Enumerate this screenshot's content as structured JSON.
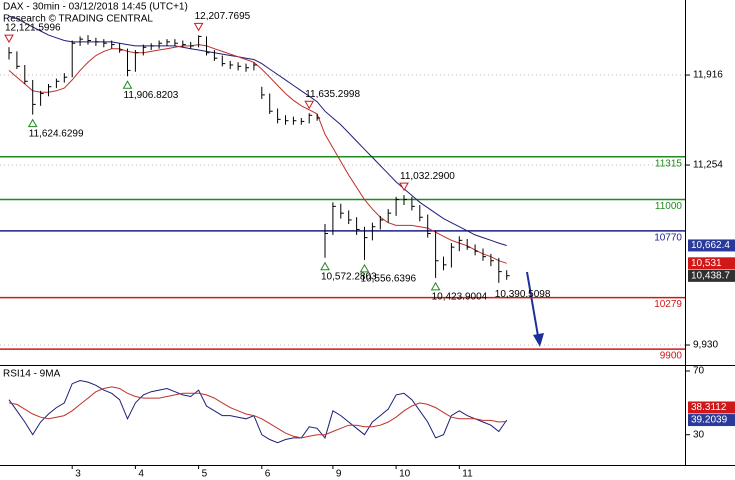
{
  "chart_data": {
    "type": "ohlc",
    "title": "DAX - 30min - 03/12/2018 14:45 (UTC+1)",
    "subtitle": "Research © TRADING CENTRAL",
    "categories": [
      null,
      null,
      null,
      null,
      null,
      null,
      null,
      null,
      "3",
      null,
      null,
      null,
      null,
      null,
      null,
      null,
      "4",
      null,
      null,
      null,
      null,
      null,
      null,
      null,
      "5",
      null,
      null,
      null,
      null,
      null,
      null,
      null,
      "6",
      null,
      null,
      null,
      null,
      null,
      null,
      null,
      null,
      "9",
      null,
      null,
      null,
      null,
      null,
      null,
      null,
      "10",
      null,
      null,
      null,
      null,
      null,
      null,
      null,
      "11",
      null,
      null,
      null,
      null,
      null,
      null
    ],
    "high": [
      12121.5996,
      12090,
      11990,
      11880,
      11800,
      11850,
      11890,
      11930,
      12170,
      12200,
      12210,
      12190,
      12180,
      12170,
      12150,
      12110,
      12100,
      12140,
      12150,
      12170,
      12180,
      12180,
      12170,
      12160,
      12207.7695,
      12200,
      12100,
      12060,
      12020,
      12010,
      12000,
      12010,
      11830,
      11780,
      11670,
      11620,
      11610,
      11600,
      11635.2998,
      11630,
      10820,
      10980,
      10970,
      10920,
      10870,
      10800,
      10830,
      10880,
      10930,
      11020,
      11032.29,
      11020,
      10960,
      10890,
      10770,
      10580,
      10680,
      10730,
      10710,
      10670,
      10640,
      10600,
      10570,
      10480
    ],
    "low": [
      12030,
      11960,
      11850,
      11624.6299,
      11690,
      11760,
      11820,
      11860,
      11900,
      12130,
      12140,
      12130,
      12120,
      12110,
      12080,
      11906.8203,
      11940,
      12060,
      12100,
      12110,
      12130,
      12130,
      12120,
      12110,
      12120,
      12060,
      12020,
      11980,
      11960,
      11950,
      11940,
      11950,
      11740,
      11630,
      11560,
      11550,
      11550,
      11550,
      11560,
      11580,
      10572.2803,
      10740,
      10860,
      10820,
      10740,
      10556.6396,
      10700,
      10780,
      10830,
      10880,
      10960,
      10920,
      10840,
      10720,
      10423.9004,
      10480,
      10500,
      10620,
      10630,
      10590,
      10550,
      10510,
      10390.5098,
      10410
    ],
    "close": [
      12080,
      11980,
      11870,
      11700,
      11780,
      11830,
      11870,
      11900,
      12150,
      12180,
      12170,
      12160,
      12150,
      12140,
      12100,
      11950,
      12080,
      12120,
      12130,
      12150,
      12160,
      12150,
      12140,
      12130,
      12200,
      12080,
      12040,
      12000,
      11990,
      11980,
      11970,
      11990,
      11770,
      11650,
      11590,
      11580,
      11580,
      11575,
      11620,
      11600,
      10750,
      10950,
      10900,
      10850,
      10780,
      10720,
      10800,
      10850,
      10900,
      11000,
      11000,
      10950,
      10870,
      10750,
      10550,
      10520,
      10650,
      10700,
      10650,
      10620,
      10580,
      10550,
      10470,
      10440
    ],
    "bar_color": "#000000",
    "ylim": [
      9783,
      12468
    ],
    "yticks": [
      {
        "value": 11916,
        "label": "11,916"
      },
      {
        "value": 11254,
        "label": "11,254"
      },
      {
        "value": 9930,
        "label": "9,930"
      }
    ],
    "grid": true,
    "lines": [
      {
        "color": "#1c1f7a",
        "values": [
          12350,
          12330,
          12300,
          12270,
          12240,
          12210,
          12190,
          12170,
          12160,
          12160,
          12160,
          12160,
          12160,
          12160,
          12150,
          12140,
          12130,
          12130,
          12130,
          12130,
          12130,
          12130,
          12120,
          12110,
          12100,
          12090,
          12080,
          12070,
          12060,
          12050,
          12040,
          12030,
          12000,
          11960,
          11920,
          11880,
          11840,
          11800,
          11760,
          11720,
          11650,
          11600,
          11550,
          11490,
          11430,
          11370,
          11310,
          11250,
          11190,
          11130,
          11080,
          11030,
          10980,
          10940,
          10900,
          10860,
          10830,
          10800,
          10770,
          10740,
          10720,
          10700,
          10680,
          10662
        ]
      },
      {
        "color": "#c0302a",
        "values": [
          11950,
          11900,
          11850,
          11800,
          11790,
          11790,
          11800,
          11820,
          11880,
          11950,
          12010,
          12060,
          12090,
          12110,
          12110,
          12090,
          12080,
          12080,
          12090,
          12100,
          12110,
          12120,
          12130,
          12130,
          12140,
          12130,
          12110,
          12090,
          12070,
          12050,
          12030,
          12010,
          11960,
          11900,
          11840,
          11780,
          11730,
          11690,
          11660,
          11630,
          11480,
          11380,
          11280,
          11180,
          11090,
          11000,
          10930,
          10870,
          10830,
          10810,
          10810,
          10810,
          10800,
          10790,
          10760,
          10730,
          10700,
          10680,
          10660,
          10630,
          10600,
          10580,
          10550,
          10531
        ]
      }
    ],
    "levels": [
      {
        "value": 11315,
        "color": "#1f8a1f"
      },
      {
        "value": 11000,
        "color": "#1f8a1f"
      },
      {
        "value": 10770,
        "color": "#1c1f8a"
      },
      {
        "value": 10279,
        "color": "#d01818"
      },
      {
        "value": 9900,
        "color": "#d01818"
      }
    ],
    "annotations": [
      {
        "x": 0,
        "value": 12121.5996,
        "label": "12,121.5996",
        "kind": "high"
      },
      {
        "x": 3,
        "value": 11624.6299,
        "label": "11,624.6299",
        "kind": "low"
      },
      {
        "x": 15,
        "value": 11906.8203,
        "label": "11,906.8203",
        "kind": "low"
      },
      {
        "x": 24,
        "value": 12207.7695,
        "label": "12,207.7695",
        "kind": "high"
      },
      {
        "x": 38,
        "value": 11635.2998,
        "label": "11,635.2998",
        "kind": "high"
      },
      {
        "x": 50,
        "value": 11032.29,
        "label": "11,032.2900",
        "kind": "high"
      },
      {
        "x": 40,
        "value": 10572.2803,
        "label": "10,572.2803",
        "kind": "low"
      },
      {
        "x": 45,
        "value": 10556.6396,
        "label": "10,556.6396",
        "kind": "low"
      },
      {
        "x": 54,
        "value": 10423.9004,
        "label": "10,423.9004",
        "kind": "low"
      },
      {
        "x": 62,
        "value": 10390.5098,
        "label": "10,390.5098",
        "kind": "note"
      }
    ],
    "badges": [
      {
        "value": 10662.4,
        "label": "10,662.4",
        "color": "#2a3a9a"
      },
      {
        "value": 10531,
        "label": "10,531",
        "color": "#d01818"
      },
      {
        "value": 10438.7,
        "label": "10,438.7",
        "color": "#303030"
      }
    ],
    "rsi": {
      "title": "RSI14 - 9MA",
      "ylim": [
        11,
        72.5
      ],
      "yticks": [
        70,
        30
      ],
      "series": [
        {
          "color": "#1c1f7a",
          "values": [
            52,
            45,
            38,
            30,
            38,
            43,
            47,
            50,
            62,
            64,
            63,
            61,
            58,
            56,
            52,
            40,
            50,
            55,
            57,
            58,
            59,
            57,
            55,
            54,
            58,
            48,
            45,
            42,
            42,
            41,
            40,
            42,
            30,
            27,
            25,
            27,
            28,
            28,
            35,
            34,
            28,
            45,
            42,
            38,
            34,
            30,
            38,
            42,
            46,
            55,
            56,
            52,
            45,
            38,
            28,
            30,
            42,
            45,
            42,
            40,
            38,
            36,
            32,
            39.2039
          ]
        },
        {
          "color": "#c0302a",
          "values": [
            50,
            49,
            46,
            43,
            41,
            40,
            41,
            42,
            45,
            49,
            53,
            57,
            59,
            60,
            59,
            56,
            54,
            53,
            53,
            53,
            54,
            55,
            56,
            56,
            56,
            55,
            53,
            50,
            47,
            45,
            43,
            42,
            40,
            37,
            34,
            31,
            29,
            28,
            29,
            30,
            30,
            32,
            34,
            36,
            36,
            35,
            35,
            36,
            38,
            41,
            45,
            48,
            50,
            49,
            47,
            44,
            41,
            40,
            40,
            40,
            39,
            39,
            38,
            38.3112
          ]
        }
      ],
      "badges": [
        {
          "value": 38.3112,
          "label": "38.3112",
          "color": "#d01818"
        },
        {
          "value": 39.2039,
          "label": "39.2039",
          "color": "#2a3a9a"
        }
      ]
    }
  }
}
